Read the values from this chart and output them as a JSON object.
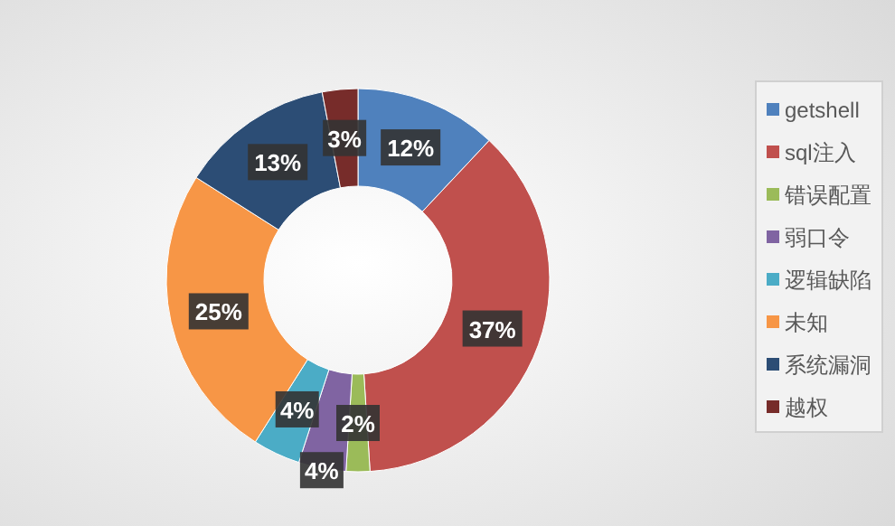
{
  "chart_data": {
    "type": "donut",
    "categories": [
      "getshell",
      "sql注入",
      "错误配置",
      "弱口令",
      "逻辑缺陷",
      "未知",
      "系统漏洞",
      "越权"
    ],
    "values": [
      12,
      37,
      2,
      4,
      4,
      25,
      13,
      3
    ],
    "colors": [
      "#4f81bd",
      "#c0504d",
      "#9bbb59",
      "#8064a2",
      "#4bacc6",
      "#f79646",
      "#2c4d75",
      "#772c2a"
    ],
    "value_labels": [
      "12%",
      "37%",
      "2%",
      "4%",
      "4%",
      "25%",
      "13%",
      "3%"
    ],
    "legend": "right"
  }
}
